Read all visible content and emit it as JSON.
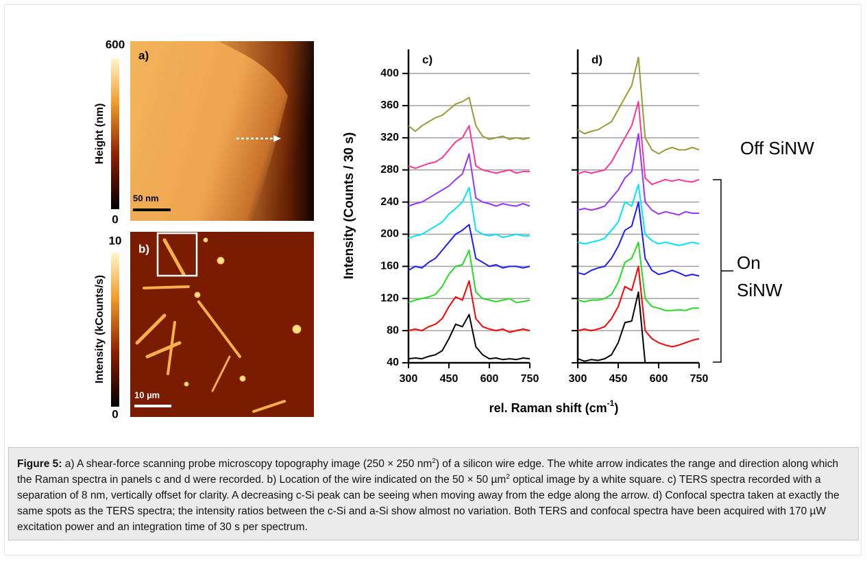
{
  "figure": {
    "panel_a": {
      "label": "a)",
      "colorbar_max": "600",
      "colorbar_min": "0",
      "colorbar_label": "Height (nm)",
      "scale_bar": "50 nm"
    },
    "panel_b": {
      "label": "b)",
      "colorbar_max": "10",
      "colorbar_min": "0",
      "colorbar_label": "Intensity (kCounts/s)",
      "scale_bar": "10 µm"
    },
    "ylabel": "Intensity (Counts / 30 s)",
    "xlabel": [
      "rel. Raman shift (cm",
      "-1",
      ")"
    ],
    "annotation_off": "Off SiNW",
    "annotation_on": [
      "On",
      "SiNW"
    ]
  },
  "chart_data": [
    {
      "type": "line",
      "title": "c)",
      "xlim": [
        300,
        750
      ],
      "xticks": [
        300,
        450,
        600,
        750
      ],
      "ylim": [
        40,
        430
      ],
      "yticks": [
        40,
        80,
        120,
        160,
        200,
        240,
        280,
        320,
        360,
        400
      ],
      "show_ytick_labels": true,
      "grid": true,
      "x": [
        300,
        325,
        350,
        375,
        400,
        425,
        450,
        475,
        500,
        525,
        550,
        575,
        600,
        625,
        650,
        675,
        700,
        725,
        750
      ],
      "series": [
        {
          "color": "#000000",
          "values": [
            45,
            46,
            45,
            48,
            50,
            55,
            70,
            88,
            85,
            100,
            60,
            50,
            45,
            46,
            44,
            45,
            44,
            46,
            45
          ]
        },
        {
          "color": "#ff0000",
          "values": [
            80,
            82,
            80,
            85,
            88,
            95,
            110,
            122,
            118,
            142,
            95,
            85,
            82,
            80,
            82,
            78,
            80,
            82,
            80
          ]
        },
        {
          "color": "#22dd22",
          "values": [
            115,
            118,
            120,
            122,
            125,
            135,
            150,
            160,
            162,
            180,
            128,
            120,
            118,
            116,
            118,
            120,
            115,
            116,
            118
          ]
        },
        {
          "color": "#1a1aff",
          "values": [
            155,
            160,
            158,
            165,
            170,
            180,
            190,
            200,
            205,
            212,
            170,
            165,
            160,
            162,
            158,
            160,
            160,
            158,
            160
          ]
        },
        {
          "color": "#00e5ff",
          "values": [
            195,
            198,
            200,
            205,
            210,
            215,
            225,
            232,
            240,
            258,
            205,
            200,
            198,
            200,
            196,
            198,
            200,
            198,
            198
          ]
        },
        {
          "color": "#9933ff",
          "values": [
            235,
            238,
            240,
            245,
            250,
            255,
            260,
            268,
            275,
            300,
            245,
            240,
            238,
            235,
            238,
            236,
            235,
            238,
            235
          ]
        },
        {
          "color": "#ff3399",
          "values": [
            285,
            282,
            285,
            288,
            290,
            295,
            305,
            315,
            320,
            335,
            285,
            280,
            278,
            276,
            278,
            280,
            276,
            278,
            278
          ]
        },
        {
          "color": "#999933",
          "values": [
            335,
            328,
            335,
            340,
            345,
            348,
            355,
            362,
            365,
            370,
            335,
            322,
            318,
            320,
            322,
            318,
            320,
            318,
            320
          ]
        }
      ]
    },
    {
      "type": "line",
      "title": "d)",
      "xlim": [
        300,
        750
      ],
      "xticks": [
        300,
        450,
        600,
        750
      ],
      "ylim": [
        40,
        430
      ],
      "yticks": [
        40,
        80,
        120,
        160,
        200,
        240,
        280,
        320,
        360,
        400
      ],
      "show_ytick_labels": false,
      "grid": true,
      "x": [
        300,
        325,
        350,
        375,
        400,
        425,
        450,
        475,
        500,
        525,
        550,
        575,
        600,
        625,
        650,
        675,
        700,
        725,
        750
      ],
      "series": [
        {
          "color": "#000000",
          "values": [
            45,
            42,
            44,
            43,
            45,
            50,
            65,
            90,
            92,
            128,
            40,
            40,
            40,
            40,
            40,
            40,
            40,
            40,
            40
          ]
        },
        {
          "color": "#ff0000",
          "values": [
            80,
            82,
            80,
            82,
            85,
            95,
            110,
            135,
            130,
            160,
            80,
            70,
            65,
            62,
            60,
            62,
            65,
            68,
            70
          ]
        },
        {
          "color": "#22dd22",
          "values": [
            118,
            116,
            118,
            118,
            120,
            125,
            140,
            165,
            170,
            190,
            120,
            110,
            108,
            105,
            105,
            106,
            105,
            108,
            108
          ]
        },
        {
          "color": "#1a1aff",
          "values": [
            152,
            150,
            155,
            158,
            160,
            170,
            185,
            205,
            210,
            240,
            170,
            155,
            150,
            152,
            155,
            152,
            148,
            150,
            148
          ]
        },
        {
          "color": "#00e5ff",
          "values": [
            190,
            188,
            190,
            192,
            195,
            205,
            215,
            240,
            235,
            262,
            200,
            192,
            188,
            190,
            188,
            186,
            188,
            190,
            188
          ]
        },
        {
          "color": "#9933ff",
          "values": [
            230,
            232,
            230,
            232,
            235,
            245,
            255,
            270,
            278,
            325,
            240,
            230,
            225,
            228,
            226,
            224,
            228,
            226,
            226
          ]
        },
        {
          "color": "#ff3399",
          "values": [
            275,
            278,
            276,
            278,
            280,
            290,
            305,
            320,
            335,
            365,
            270,
            262,
            265,
            268,
            266,
            268,
            266,
            265,
            268
          ]
        },
        {
          "color": "#999933",
          "values": [
            330,
            325,
            328,
            330,
            335,
            340,
            355,
            370,
            385,
            420,
            320,
            305,
            300,
            305,
            308,
            305,
            305,
            308,
            305
          ]
        }
      ]
    }
  ],
  "caption": {
    "label": "Figure 5:",
    "parts": [
      " a) A shear-force scanning probe microscopy topography image (250 × 250 nm",
      "2",
      ") of a silicon wire edge. The white arrow indicates the range and direction along which the Raman spectra in panels c and d were recorded. b) Location of the wire indicated on the 50 × 50 µm",
      "2",
      " optical image by a white square. c) TERS spectra recorded with a separation of 8 nm, vertically offset for clarity. A decreasing c-Si peak can be seeing when moving away from the edge along the arrow. d) Confocal spectra taken at exactly the same spots as the TERS spectra; the intensity ratios between the c-Si and a-Si show almost no variation. Both TERS and confocal spectra have been acquired with 170 µW excitation power and an integration time of 30 s per spectrum."
    ]
  }
}
